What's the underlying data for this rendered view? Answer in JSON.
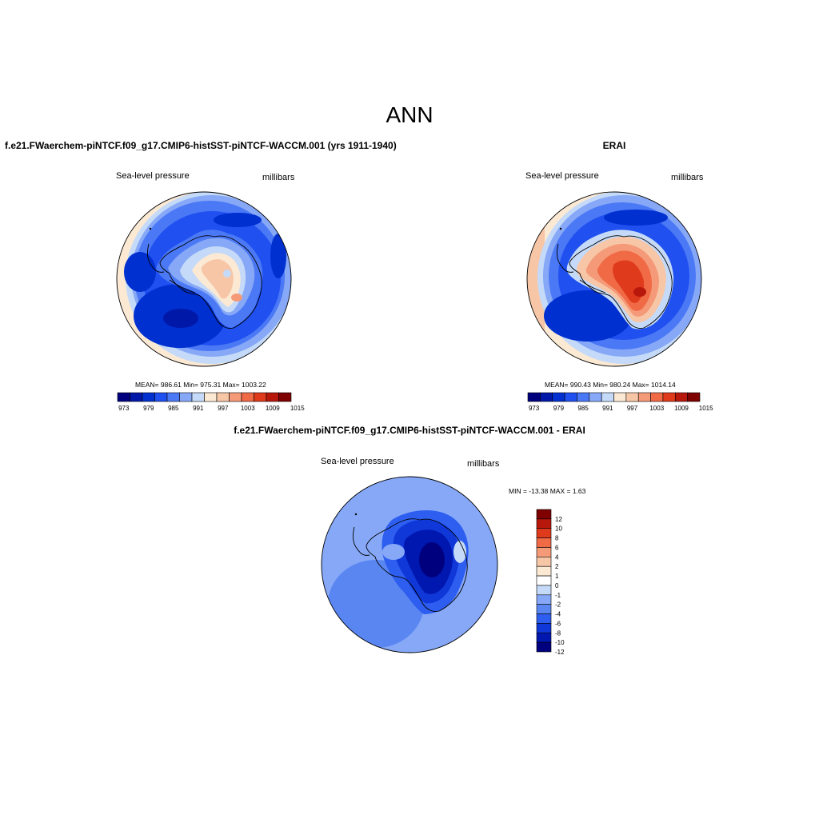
{
  "figure": {
    "season": "ANN"
  },
  "panels": {
    "model": {
      "title": "f.e21.FWaerchem-piNTCF.f09_g17.CMIP6-histSST-piNTCF-WACCM.001 (yrs 1911-1940)",
      "variable": "Sea-level pressure",
      "units": "millibars",
      "stats": "MEAN= 986.61  Min= 975.31  Max= 1003.22"
    },
    "obs": {
      "title": "ERAI",
      "variable": "Sea-level pressure",
      "units": "millibars",
      "stats": "MEAN= 990.43  Min= 980.24  Max= 1014.14"
    },
    "diff": {
      "title": "f.e21.FWaerchem-piNTCF.f09_g17.CMIP6-histSST-piNTCF-WACCM.001 - ERAI",
      "variable": "Sea-level pressure",
      "units": "millibars",
      "stats": "MIN = -13.38 MAX =   1.63"
    }
  },
  "colorbars": {
    "abs": {
      "colors": [
        "#00007f",
        "#0018a8",
        "#0030d0",
        "#2050f0",
        "#4b78f5",
        "#86a8f7",
        "#c4daf8",
        "#fbe9d4",
        "#f7c6a6",
        "#f59a78",
        "#f06a46",
        "#e03a1c",
        "#b8180c",
        "#7f0000"
      ],
      "labels": [
        "973",
        "979",
        "985",
        "991",
        "997",
        "1003",
        "1009",
        "1015"
      ]
    },
    "diff": {
      "colors": [
        "#7f0000",
        "#b8180c",
        "#e03a1c",
        "#f06a46",
        "#f59a78",
        "#f7c6a6",
        "#fbe9d4",
        "#ffffff",
        "#c4daf8",
        "#86a8f7",
        "#5a86f2",
        "#2e5ef0",
        "#1038d8",
        "#0018b0",
        "#00007f"
      ],
      "labels": [
        "12",
        "10",
        "8",
        "6",
        "4",
        "2",
        "1",
        "0",
        "-1",
        "-2",
        "-4",
        "-6",
        "-8",
        "-10",
        "-12"
      ]
    }
  }
}
